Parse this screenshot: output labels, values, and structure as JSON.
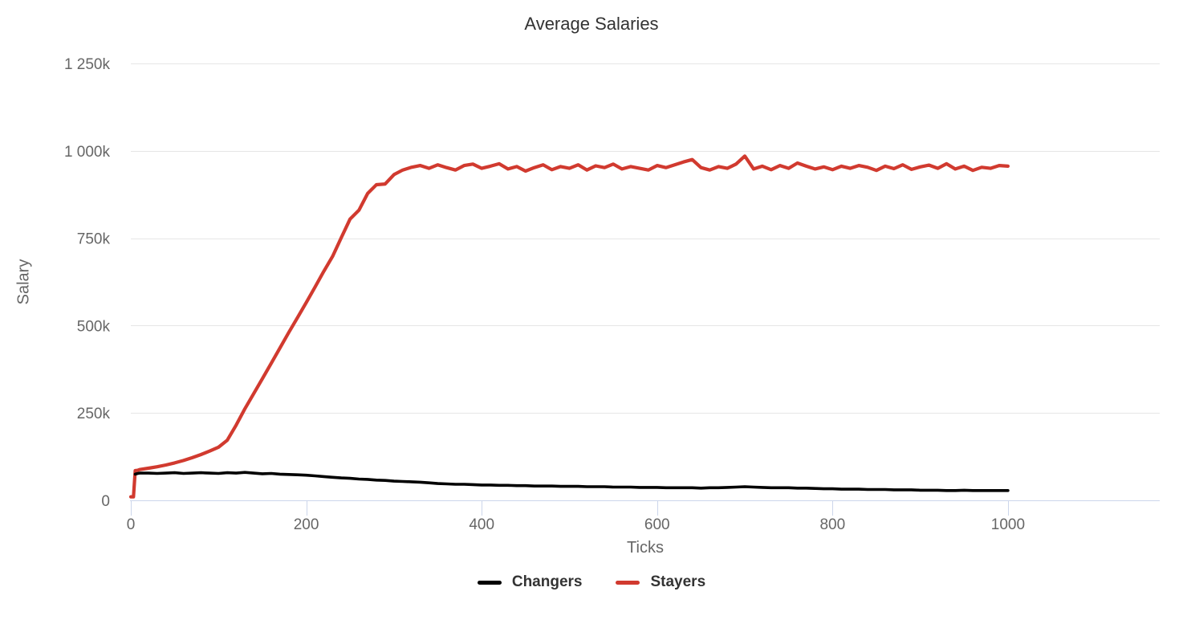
{
  "chart_data": {
    "type": "line",
    "title": "Average Salaries",
    "xlabel": "Ticks",
    "ylabel": "Salary",
    "grid": true,
    "legend_position": "bottom",
    "xlim": [
      0,
      1173
    ],
    "ylim_k": [
      0,
      1250
    ],
    "x_ticks": [
      0,
      200,
      400,
      600,
      800,
      1000
    ],
    "x_tick_labels": [
      "0",
      "200",
      "400",
      "600",
      "800",
      "1000"
    ],
    "y_ticks_k": [
      0,
      250,
      500,
      750,
      1000,
      1250
    ],
    "y_tick_labels": [
      "0",
      "250k",
      "500k",
      "750k",
      "1 000k",
      "1 250k"
    ],
    "axis_line_color": "#ccd6eb",
    "gridline_color": "#e6e6e6",
    "tick_label_color": "#666666",
    "title_color": "#333333",
    "series": [
      {
        "name": "Changers",
        "color": "#000000",
        "line_width": 3.6,
        "x": [
          5,
          8,
          10,
          20,
          30,
          40,
          50,
          60,
          70,
          80,
          90,
          100,
          110,
          120,
          130,
          140,
          150,
          160,
          170,
          180,
          190,
          200,
          210,
          220,
          230,
          240,
          250,
          260,
          270,
          280,
          290,
          300,
          310,
          320,
          330,
          340,
          350,
          360,
          370,
          380,
          390,
          400,
          410,
          420,
          430,
          440,
          450,
          460,
          470,
          480,
          490,
          500,
          510,
          520,
          530,
          540,
          550,
          560,
          570,
          580,
          590,
          600,
          610,
          620,
          630,
          640,
          650,
          660,
          670,
          680,
          690,
          700,
          710,
          720,
          730,
          740,
          750,
          760,
          770,
          780,
          790,
          800,
          810,
          820,
          830,
          840,
          850,
          860,
          870,
          880,
          890,
          900,
          910,
          920,
          930,
          940,
          950,
          960,
          970,
          980,
          990,
          1000
        ],
        "values_k": [
          75,
          77,
          78,
          78,
          77,
          78,
          79,
          77,
          78,
          79,
          78,
          77,
          79,
          78,
          80,
          78,
          76,
          77,
          75,
          74,
          73,
          72,
          70,
          68,
          66,
          64,
          63,
          61,
          60,
          58,
          57,
          55,
          54,
          53,
          52,
          50,
          48,
          47,
          46,
          46,
          45,
          44,
          44,
          43,
          43,
          42,
          42,
          41,
          41,
          41,
          40,
          40,
          40,
          39,
          39,
          39,
          38,
          38,
          38,
          37,
          37,
          37,
          36,
          36,
          36,
          36,
          35,
          36,
          36,
          37,
          38,
          39,
          38,
          37,
          36,
          36,
          36,
          35,
          35,
          34,
          33,
          33,
          32,
          32,
          32,
          31,
          31,
          31,
          30,
          30,
          30,
          29,
          29,
          29,
          28,
          28,
          29,
          28,
          28,
          28,
          28,
          28
        ]
      },
      {
        "name": "Stayers",
        "color": "#d13a2f",
        "line_width": 4.2,
        "x": [
          0,
          3,
          5,
          8,
          10,
          20,
          30,
          40,
          50,
          60,
          70,
          80,
          90,
          100,
          110,
          120,
          130,
          140,
          150,
          160,
          170,
          180,
          190,
          200,
          210,
          220,
          230,
          240,
          250,
          260,
          270,
          280,
          290,
          300,
          310,
          320,
          330,
          340,
          350,
          360,
          370,
          380,
          390,
          400,
          410,
          420,
          430,
          440,
          450,
          460,
          470,
          480,
          490,
          500,
          510,
          520,
          530,
          540,
          550,
          560,
          570,
          580,
          590,
          600,
          610,
          620,
          630,
          640,
          650,
          660,
          670,
          680,
          690,
          700,
          710,
          720,
          730,
          740,
          750,
          760,
          770,
          780,
          790,
          800,
          810,
          820,
          830,
          840,
          850,
          860,
          870,
          880,
          890,
          900,
          910,
          920,
          930,
          940,
          950,
          960,
          970,
          980,
          990,
          1000
        ],
        "values_k": [
          10,
          10,
          85,
          86,
          88,
          92,
          96,
          101,
          107,
          114,
          122,
          131,
          141,
          152,
          172,
          215,
          262,
          305,
          348,
          392,
          436,
          480,
          523,
          566,
          610,
          655,
          698,
          752,
          805,
          830,
          878,
          903,
          905,
          932,
          945,
          953,
          958,
          950,
          960,
          952,
          945,
          958,
          962,
          950,
          956,
          963,
          948,
          955,
          942,
          952,
          960,
          946,
          955,
          950,
          960,
          945,
          957,
          952,
          962,
          948,
          955,
          950,
          945,
          958,
          952,
          960,
          968,
          975,
          952,
          945,
          955,
          950,
          962,
          985,
          948,
          956,
          946,
          958,
          950,
          965,
          956,
          948,
          954,
          946,
          956,
          950,
          958,
          953,
          944,
          956,
          949,
          960,
          947,
          954,
          959,
          950,
          963,
          948,
          956,
          944,
          953,
          950,
          958,
          956
        ]
      }
    ]
  }
}
